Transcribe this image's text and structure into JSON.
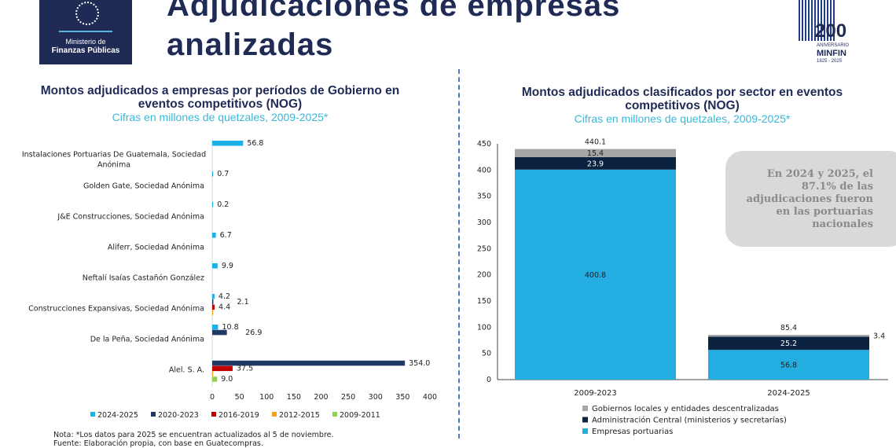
{
  "header": {
    "title": "Adjudicaciones de empresas analizadas",
    "logo_line1": "Ministerio de",
    "logo_line2": "Finanzas Públicas",
    "logo_seal_text": "GUATEMALA",
    "anniv_number": "200",
    "anniv_text": "ANIVERSARIO",
    "anniv_brand": "MINFIN",
    "anniv_years": "1825 - 2025"
  },
  "note": {
    "line1": "Nota: *Los datos para 2025 se encuentran actualizados al 5 de noviembre.",
    "line2": "Fuente: Elaboración propia, con base en Guatecompras."
  },
  "callout": "En 2024 y 2025, el 87.1% de las adjudicaciones fueron en las portuarias nacionales",
  "chart_data": [
    {
      "type": "bar",
      "orientation": "horizontal",
      "title": "Montos adjudicados a empresas por períodos de Gobierno en eventos competitivos (NOG)",
      "subtitle": "Cifras en millones de quetzales, 2009-2025*",
      "xlim": [
        0,
        400
      ],
      "xticks": [
        "0",
        "50",
        "100",
        "150",
        "200",
        "250",
        "300",
        "350",
        "400"
      ],
      "legend_position": "bottom",
      "grid": false,
      "categories": [
        "Instalaciones Portuarias De Guatemala, Sociedad Anónima",
        "Golden Gate, Sociedad Anónima",
        "J&E Construcciones, Sociedad Anónima",
        "Aliferr, Sociedad Anónima",
        "Neftalí Isaías Castañón González",
        "Construcciones Expansivas, Sociedad Anónima",
        "De la Peña, Sociedad Anónima",
        "Alel. S. A."
      ],
      "series": [
        {
          "name": "2024-2025",
          "color": "#1ab0e8",
          "values": [
            56.8,
            0.7,
            0.2,
            6.7,
            9.9,
            4.2,
            10.8,
            null
          ]
        },
        {
          "name": "2020-2023",
          "color": "#1f3864",
          "values": [
            null,
            null,
            null,
            null,
            null,
            2.1,
            26.9,
            354.0
          ]
        },
        {
          "name": "2016-2019",
          "color": "#c00000",
          "values": [
            null,
            null,
            null,
            null,
            null,
            4.4,
            null,
            37.5
          ]
        },
        {
          "name": "2012-2015",
          "color": "#f5a21b",
          "values": [
            null,
            null,
            null,
            null,
            null,
            null,
            null,
            null
          ]
        },
        {
          "name": "2009-2011",
          "color": "#92d050",
          "values": [
            null,
            null,
            null,
            null,
            null,
            null,
            null,
            9.0
          ]
        }
      ]
    },
    {
      "type": "bar",
      "stacked": true,
      "title": "Montos adjudicados clasificados por sector en eventos competitivos (NOG)",
      "subtitle": "Cifras en millones de quetzales, 2009-2025*",
      "ylim": [
        0,
        450
      ],
      "yticks": [
        "0",
        "50",
        "100",
        "150",
        "200",
        "250",
        "300",
        "350",
        "400",
        "450"
      ],
      "legend_position": "bottom",
      "grid": false,
      "categories": [
        "2009-2023",
        "2024-2025"
      ],
      "totals": [
        "440.1",
        "85.4"
      ],
      "series": [
        {
          "name": "Empresas portuarias",
          "color": "#23ade0",
          "values": [
            400.8,
            56.8
          ]
        },
        {
          "name": "Administración Central (ministerios y secretarías)",
          "color": "#0b2341",
          "values": [
            23.9,
            25.2
          ]
        },
        {
          "name": "Gobiernos locales y entidades descentralizadas",
          "color": "#a6a6a6",
          "values": [
            15.4,
            3.4
          ]
        }
      ]
    }
  ]
}
